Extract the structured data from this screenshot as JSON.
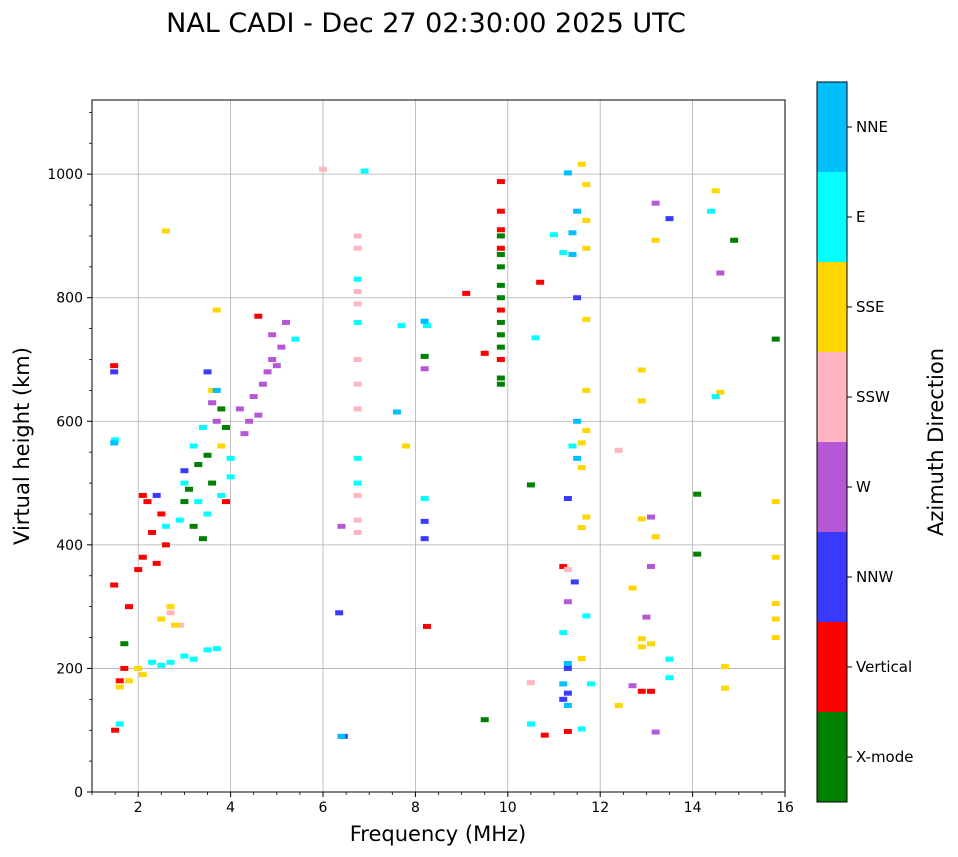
{
  "chart_data": {
    "type": "scatter",
    "title": "NAL CADI - Dec 27 02:30:00 2025 UTC",
    "xlabel": "Frequency (MHz)",
    "ylabel": "Virtual height (km)",
    "xlim": [
      1,
      16
    ],
    "ylim": [
      0,
      1120
    ],
    "grid": true,
    "x_ticks": [
      2,
      4,
      6,
      8,
      10,
      12,
      14,
      16
    ],
    "y_ticks": [
      0,
      200,
      400,
      600,
      800,
      1000
    ],
    "x_tick_labels": [
      "2",
      "4",
      "6",
      "8",
      "10",
      "12",
      "14",
      "16"
    ],
    "y_tick_labels": [
      "0",
      "200",
      "400",
      "600",
      "800",
      "1000"
    ],
    "colorbar": {
      "label": "Azimuth Direction",
      "categories": [
        {
          "name": "X-mode",
          "color": "#008000"
        },
        {
          "name": "Vertical",
          "color": "#ff0000"
        },
        {
          "name": "NNW",
          "color": "#3a3aff"
        },
        {
          "name": "W",
          "color": "#b558d6"
        },
        {
          "name": "SSW",
          "color": "#ffb6c1"
        },
        {
          "name": "SSE",
          "color": "#ffd700"
        },
        {
          "name": "E",
          "color": "#00ffff"
        },
        {
          "name": "NNE",
          "color": "#00bfff"
        }
      ]
    },
    "series": [
      {
        "name": "X-mode",
        "points": [
          [
            9.85,
            660
          ],
          [
            9.85,
            670
          ],
          [
            9.85,
            720
          ],
          [
            9.85,
            740
          ],
          [
            9.85,
            760
          ],
          [
            9.85,
            800
          ],
          [
            9.85,
            820
          ],
          [
            9.85,
            850
          ],
          [
            9.85,
            870
          ],
          [
            9.85,
            900
          ],
          [
            14.1,
            385
          ],
          [
            14.1,
            482
          ],
          [
            15.8,
            733
          ],
          [
            14.9,
            893
          ],
          [
            10.5,
            497
          ],
          [
            9.5,
            117
          ],
          [
            3.3,
            530
          ],
          [
            3.5,
            545
          ],
          [
            3.6,
            500
          ],
          [
            3.0,
            470
          ],
          [
            3.8,
            620
          ],
          [
            3.9,
            590
          ],
          [
            3.2,
            430
          ],
          [
            3.4,
            410
          ],
          [
            3.1,
            490
          ],
          [
            8.2,
            705
          ],
          [
            1.7,
            240
          ]
        ]
      },
      {
        "name": "Vertical",
        "points": [
          [
            9.85,
            988
          ],
          [
            9.85,
            940
          ],
          [
            9.85,
            910
          ],
          [
            9.85,
            880
          ],
          [
            9.85,
            780
          ],
          [
            9.85,
            700
          ],
          [
            1.48,
            690
          ],
          [
            1.48,
            335
          ],
          [
            2.1,
            480
          ],
          [
            2.1,
            380
          ],
          [
            2.0,
            360
          ],
          [
            2.3,
            420
          ],
          [
            2.5,
            450
          ],
          [
            2.2,
            470
          ],
          [
            2.6,
            400
          ],
          [
            2.4,
            370
          ],
          [
            1.8,
            300
          ],
          [
            1.7,
            200
          ],
          [
            1.6,
            180
          ],
          [
            1.5,
            100
          ],
          [
            9.1,
            807
          ],
          [
            9.5,
            710
          ],
          [
            10.7,
            825
          ],
          [
            11.3,
            98
          ],
          [
            10.8,
            92
          ],
          [
            11.2,
            365
          ],
          [
            12.9,
            163
          ],
          [
            13.1,
            163
          ],
          [
            8.25,
            268
          ],
          [
            4.6,
            770
          ],
          [
            3.9,
            470
          ]
        ]
      },
      {
        "name": "NNW",
        "points": [
          [
            1.48,
            680
          ],
          [
            6.45,
            90
          ],
          [
            6.35,
            290
          ],
          [
            11.3,
            475
          ],
          [
            11.3,
            200
          ],
          [
            11.3,
            160
          ],
          [
            11.2,
            150
          ],
          [
            11.45,
            340
          ],
          [
            11.5,
            800
          ],
          [
            13.5,
            928
          ],
          [
            8.2,
            438
          ],
          [
            8.2,
            410
          ],
          [
            3.5,
            680
          ],
          [
            2.4,
            480
          ],
          [
            3.0,
            520
          ]
        ]
      },
      {
        "name": "W",
        "points": [
          [
            4.9,
            700
          ],
          [
            5.1,
            720
          ],
          [
            4.7,
            660
          ],
          [
            4.5,
            640
          ],
          [
            4.8,
            680
          ],
          [
            5.0,
            690
          ],
          [
            4.6,
            610
          ],
          [
            4.4,
            600
          ],
          [
            4.3,
            580
          ],
          [
            4.2,
            620
          ],
          [
            5.2,
            760
          ],
          [
            4.9,
            740
          ],
          [
            6.4,
            430
          ],
          [
            13.2,
            953
          ],
          [
            13.1,
            445
          ],
          [
            13.1,
            365
          ],
          [
            13.0,
            283
          ],
          [
            13.2,
            97
          ],
          [
            14.6,
            840
          ],
          [
            11.3,
            308
          ],
          [
            12.7,
            172
          ],
          [
            3.6,
            630
          ],
          [
            3.7,
            600
          ],
          [
            8.2,
            685
          ]
        ]
      },
      {
        "name": "SSW",
        "points": [
          [
            6.75,
            900
          ],
          [
            6.75,
            880
          ],
          [
            6.75,
            810
          ],
          [
            6.75,
            790
          ],
          [
            6.75,
            700
          ],
          [
            6.75,
            660
          ],
          [
            6.75,
            620
          ],
          [
            6.75,
            480
          ],
          [
            6.75,
            440
          ],
          [
            6.75,
            420
          ],
          [
            12.4,
            553
          ],
          [
            11.3,
            360
          ],
          [
            10.5,
            177
          ],
          [
            6.0,
            1008
          ],
          [
            2.9,
            270
          ],
          [
            2.7,
            290
          ]
        ]
      },
      {
        "name": "SSE",
        "points": [
          [
            1.6,
            170
          ],
          [
            1.8,
            180
          ],
          [
            2.0,
            200
          ],
          [
            2.1,
            190
          ],
          [
            2.5,
            280
          ],
          [
            2.7,
            300
          ],
          [
            2.8,
            270
          ],
          [
            3.7,
            780
          ],
          [
            3.6,
            650
          ],
          [
            3.8,
            560
          ],
          [
            11.7,
            983
          ],
          [
            11.7,
            925
          ],
          [
            11.7,
            880
          ],
          [
            11.6,
            1016
          ],
          [
            11.7,
            765
          ],
          [
            11.7,
            650
          ],
          [
            11.7,
            585
          ],
          [
            11.7,
            445
          ],
          [
            12.9,
            683
          ],
          [
            12.9,
            633
          ],
          [
            12.9,
            442
          ],
          [
            12.9,
            248
          ],
          [
            12.9,
            235
          ],
          [
            13.1,
            240
          ],
          [
            13.2,
            413
          ],
          [
            13.2,
            893
          ],
          [
            14.5,
            973
          ],
          [
            14.6,
            647
          ],
          [
            14.7,
            203
          ],
          [
            14.7,
            168
          ],
          [
            15.8,
            380
          ],
          [
            15.8,
            470
          ],
          [
            15.8,
            305
          ],
          [
            15.8,
            280
          ],
          [
            15.8,
            250
          ],
          [
            11.6,
            565
          ],
          [
            11.6,
            525
          ],
          [
            11.6,
            428
          ],
          [
            11.6,
            216
          ],
          [
            12.4,
            140
          ],
          [
            12.7,
            330
          ],
          [
            7.8,
            560
          ],
          [
            2.6,
            908
          ]
        ]
      },
      {
        "name": "E",
        "points": [
          [
            3.0,
            220
          ],
          [
            3.2,
            215
          ],
          [
            3.5,
            230
          ],
          [
            3.7,
            232
          ],
          [
            2.5,
            205
          ],
          [
            2.3,
            210
          ],
          [
            2.7,
            210
          ],
          [
            3.0,
            500
          ],
          [
            3.3,
            470
          ],
          [
            3.5,
            450
          ],
          [
            3.8,
            480
          ],
          [
            4.0,
            510
          ],
          [
            4.0,
            540
          ],
          [
            2.9,
            440
          ],
          [
            2.6,
            430
          ],
          [
            3.2,
            560
          ],
          [
            3.4,
            590
          ],
          [
            6.75,
            760
          ],
          [
            6.75,
            540
          ],
          [
            6.75,
            500
          ],
          [
            6.75,
            830
          ],
          [
            6.9,
            1005
          ],
          [
            8.25,
            755
          ],
          [
            7.7,
            755
          ],
          [
            8.2,
            475
          ],
          [
            11.0,
            902
          ],
          [
            11.2,
            873
          ],
          [
            11.2,
            258
          ],
          [
            11.4,
            560
          ],
          [
            11.6,
            102
          ],
          [
            11.7,
            285
          ],
          [
            11.8,
            175
          ],
          [
            14.5,
            640
          ],
          [
            14.4,
            940
          ],
          [
            13.5,
            215
          ],
          [
            13.5,
            185
          ],
          [
            10.5,
            110
          ],
          [
            10.6,
            735
          ],
          [
            1.5,
            570
          ],
          [
            1.6,
            110
          ],
          [
            5.4,
            733
          ]
        ]
      },
      {
        "name": "NNE",
        "points": [
          [
            1.48,
            565
          ],
          [
            11.3,
            1002
          ],
          [
            11.5,
            940
          ],
          [
            11.4,
            905
          ],
          [
            11.4,
            870
          ],
          [
            11.5,
            600
          ],
          [
            11.5,
            540
          ],
          [
            11.3,
            208
          ],
          [
            11.2,
            175
          ],
          [
            11.3,
            140
          ],
          [
            7.6,
            615
          ],
          [
            6.4,
            90
          ],
          [
            3.7,
            650
          ],
          [
            8.2,
            762
          ]
        ]
      }
    ]
  }
}
